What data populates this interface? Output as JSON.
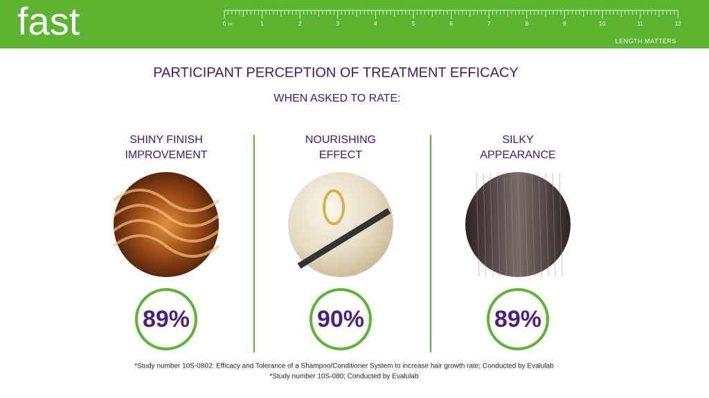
{
  "header": {
    "logo": "fast",
    "ruler": {
      "unit": "cm",
      "labels": [
        "0",
        "1",
        "2",
        "3",
        "4",
        "5",
        "6",
        "7",
        "8",
        "9",
        "10",
        "11",
        "12"
      ]
    },
    "tagline": "LENGTH MATTERS"
  },
  "title": "PARTICIPANT PERCEPTION OF TREATMENT EFFICACY",
  "subtitle": "WHEN ASKED TO RATE:",
  "items": [
    {
      "label": [
        "SHINY FINISH",
        "IMPROVEMENT"
      ],
      "value": "89%"
    },
    {
      "label": [
        "NOURISHING",
        "EFFECT"
      ],
      "value": "90%"
    },
    {
      "label": [
        "SILKY",
        "APPEARANCE"
      ],
      "value": "89%"
    }
  ],
  "footnotes": [
    "*Study number 10S-0802: Efficacy and Tolerance of a Shampoo/Conditioner System to increase hair growth rate; Conducted by Evalulab",
    "*Study number 10S-080; Conducted by Evalulab"
  ]
}
